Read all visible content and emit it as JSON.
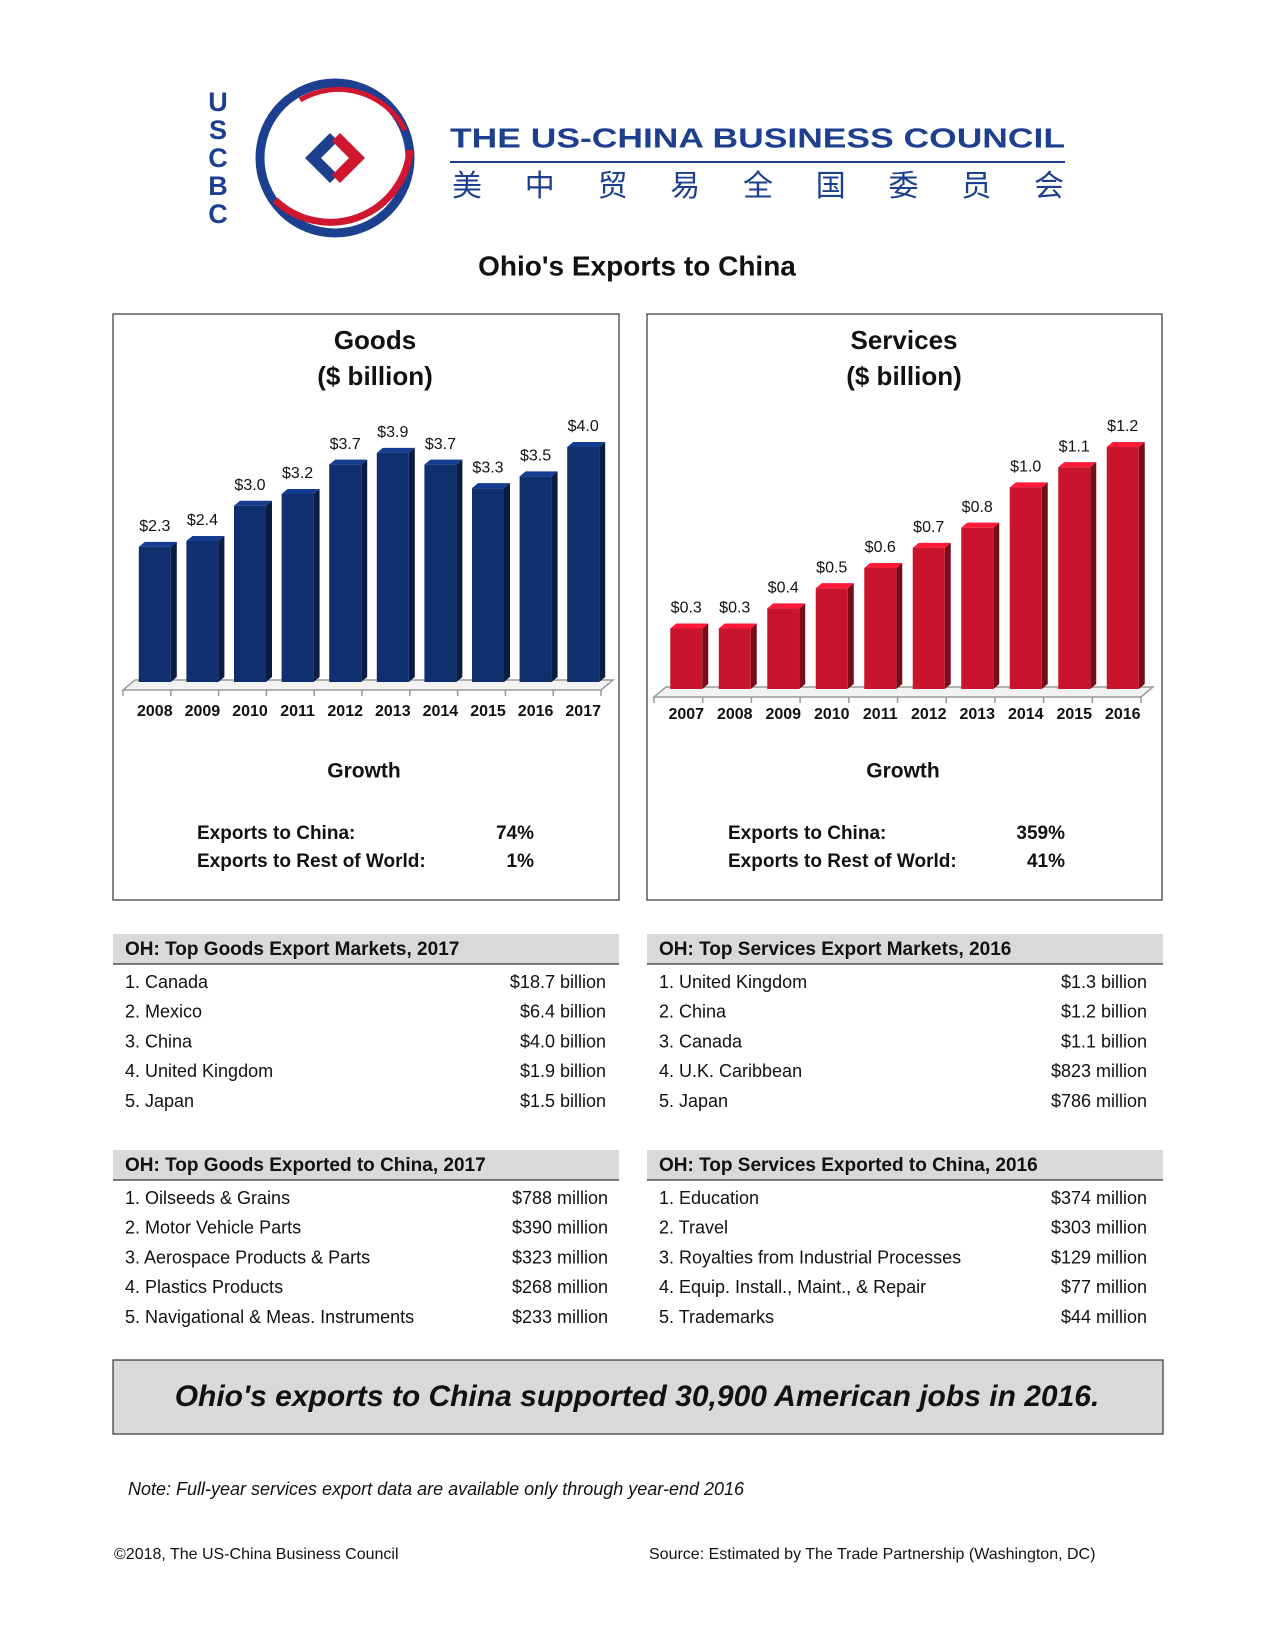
{
  "header": {
    "logo_letters": [
      "U",
      "S",
      "C",
      "B",
      "C"
    ],
    "name": "THE US-CHINA BUSINESS COUNCIL",
    "name_chinese": "美 中 贸 易 全 国 委 员 会"
  },
  "title": "Ohio's Exports to China",
  "chart_data": [
    {
      "type": "bar",
      "title": "Goods",
      "subtitle": "($ billion)",
      "categories": [
        "2008",
        "2009",
        "2010",
        "2011",
        "2012",
        "2013",
        "2014",
        "2015",
        "2016",
        "2017"
      ],
      "values": [
        2.3,
        2.4,
        3.0,
        3.2,
        3.7,
        3.9,
        3.7,
        3.3,
        3.5,
        4.0
      ],
      "value_labels": [
        "$2.3",
        "$2.4",
        "$3.0",
        "$3.2",
        "$3.7",
        "$3.9",
        "$3.7",
        "$3.3",
        "$3.5",
        "$4.0"
      ],
      "color": "#0f2f6e"
    },
    {
      "type": "bar",
      "title": "Services",
      "subtitle": "($ billion)",
      "categories": [
        "2007",
        "2008",
        "2009",
        "2010",
        "2011",
        "2012",
        "2013",
        "2014",
        "2015",
        "2016"
      ],
      "values": [
        0.3,
        0.3,
        0.4,
        0.5,
        0.6,
        0.7,
        0.8,
        1.0,
        1.1,
        1.2
      ],
      "value_labels": [
        "$0.3",
        "$0.3",
        "$0.4",
        "$0.5",
        "$0.6",
        "$0.7",
        "$0.8",
        "$1.0",
        "$1.1",
        "$1.2"
      ],
      "color": "#c8142c"
    }
  ],
  "growth": [
    {
      "title": "Growth",
      "rows": [
        [
          "Exports to China:",
          "74%"
        ],
        [
          "Exports to Rest of World:",
          "1%"
        ]
      ]
    },
    {
      "title": "Growth",
      "rows": [
        [
          "Exports to China:",
          "359%"
        ],
        [
          "Exports to Rest of World:",
          "41%"
        ]
      ]
    }
  ],
  "tables": [
    {
      "title": "OH: Top Goods Export Markets, 2017",
      "rows": [
        [
          "1. Canada",
          "$18.7 billion"
        ],
        [
          "2. Mexico",
          "$6.4 billion"
        ],
        [
          "3. China",
          "$4.0 billion"
        ],
        [
          "4. United Kingdom",
          "$1.9 billion"
        ],
        [
          "5. Japan",
          "$1.5 billion"
        ]
      ]
    },
    {
      "title": "OH: Top Services Export Markets, 2016",
      "rows": [
        [
          "1. United Kingdom",
          "$1.3 billion"
        ],
        [
          "2. China",
          "$1.2 billion"
        ],
        [
          "3. Canada",
          "$1.1 billion"
        ],
        [
          "4. U.K. Caribbean",
          "$823 million"
        ],
        [
          "5. Japan",
          "$786 million"
        ]
      ]
    },
    {
      "title": "OH: Top Goods Exported to China, 2017",
      "rows": [
        [
          "1. Oilseeds & Grains",
          "$788 million"
        ],
        [
          "2. Motor Vehicle Parts",
          "$390 million"
        ],
        [
          "3. Aerospace Products & Parts",
          "$323 million"
        ],
        [
          "4. Plastics Products",
          "$268 million"
        ],
        [
          "5. Navigational & Meas. Instruments",
          "$233 million"
        ]
      ]
    },
    {
      "title": "OH: Top Services Exported to China, 2016",
      "rows": [
        [
          "1. Education",
          "$374 million"
        ],
        [
          "2. Travel",
          "$303 million"
        ],
        [
          "3. Royalties from Industrial Processes",
          "$129 million"
        ],
        [
          "4. Equip. Install., Maint., & Repair",
          "$77 million"
        ],
        [
          "5. Trademarks",
          "$44 million"
        ]
      ]
    }
  ],
  "banner": "Ohio's exports to China supported 30,900 American jobs in 2016.",
  "note": "Note: Full-year services export data are available only through year-end 2016",
  "footer": {
    "copyright": "©2018, The US-China Business Council",
    "source": "Source: Estimated by The Trade Partnership (Washington, DC)"
  }
}
